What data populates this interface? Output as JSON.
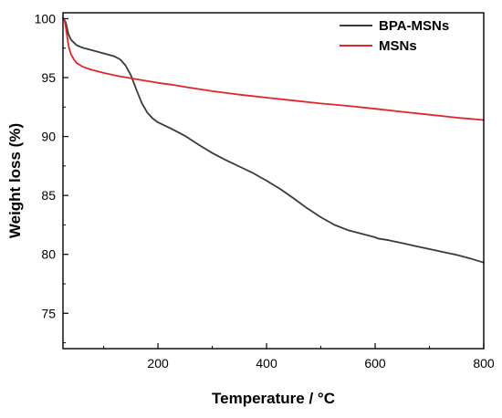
{
  "chart_data": {
    "type": "line",
    "xlabel": "Temperature / °C",
    "ylabel": "Weight loss (%)",
    "xlim": [
      25,
      800
    ],
    "ylim": [
      72,
      100.5
    ],
    "x_ticks": [
      200,
      400,
      600,
      800
    ],
    "x_minor_ticks": [
      100,
      300,
      500,
      700
    ],
    "y_ticks": [
      75,
      80,
      85,
      90,
      95,
      100
    ],
    "y_minor_ticks": [
      72.5,
      77.5,
      82.5,
      87.5,
      92.5,
      97.5
    ],
    "grid": false,
    "legend_position": "top-right",
    "series": [
      {
        "name": "BPA-MSNs",
        "color": "#3a3a3a",
        "x": [
          25,
          30,
          35,
          40,
          50,
          60,
          80,
          100,
          120,
          130,
          140,
          150,
          160,
          170,
          180,
          190,
          200,
          225,
          250,
          275,
          300,
          325,
          350,
          375,
          400,
          425,
          450,
          475,
          500,
          525,
          550,
          575,
          600,
          605,
          625,
          650,
          675,
          700,
          725,
          750,
          775,
          800
        ],
        "y": [
          100.1,
          99.7,
          98.7,
          98.2,
          97.75,
          97.55,
          97.3,
          97.05,
          96.8,
          96.55,
          96.05,
          95.2,
          94.0,
          92.85,
          92.05,
          91.55,
          91.2,
          90.65,
          90.05,
          89.3,
          88.6,
          88.0,
          87.45,
          86.9,
          86.25,
          85.55,
          84.75,
          83.9,
          83.15,
          82.5,
          82.05,
          81.75,
          81.45,
          81.35,
          81.2,
          80.95,
          80.7,
          80.45,
          80.2,
          79.95,
          79.65,
          79.3
        ]
      },
      {
        "name": "MSNs",
        "color": "#e0242c",
        "x": [
          25,
          28,
          30,
          33,
          36,
          40,
          45,
          50,
          60,
          75,
          100,
          125,
          150,
          175,
          200,
          225,
          250,
          300,
          350,
          400,
          450,
          500,
          550,
          600,
          650,
          700,
          750,
          800
        ],
        "y": [
          100.1,
          99.85,
          99.3,
          98.4,
          97.55,
          96.95,
          96.55,
          96.25,
          95.95,
          95.7,
          95.4,
          95.15,
          94.95,
          94.75,
          94.55,
          94.4,
          94.2,
          93.85,
          93.55,
          93.3,
          93.05,
          92.8,
          92.6,
          92.35,
          92.1,
          91.85,
          91.6,
          91.4
        ]
      }
    ]
  }
}
